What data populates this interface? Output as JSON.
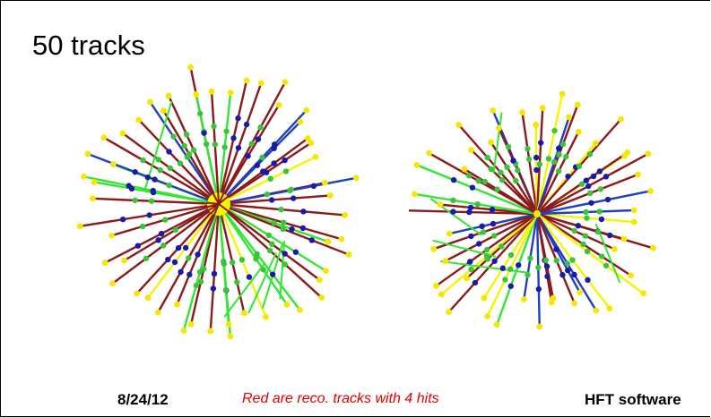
{
  "slide": {
    "title": "50 tracks",
    "footer_date": "8/24/12",
    "footer_note": "Red are reco. tracks with 4 hits",
    "footer_right": "HFT software"
  },
  "legend_colors": {
    "reco_4hits": "#8b1a1a",
    "blue_tracks": "#1f3fbf",
    "green_tracks": "#33e633",
    "yellow_tracks": "#f5f500",
    "hit_blue": "#1a1aa8",
    "hit_green": "#3ac43a",
    "endpoint": "#f5e800"
  }
}
